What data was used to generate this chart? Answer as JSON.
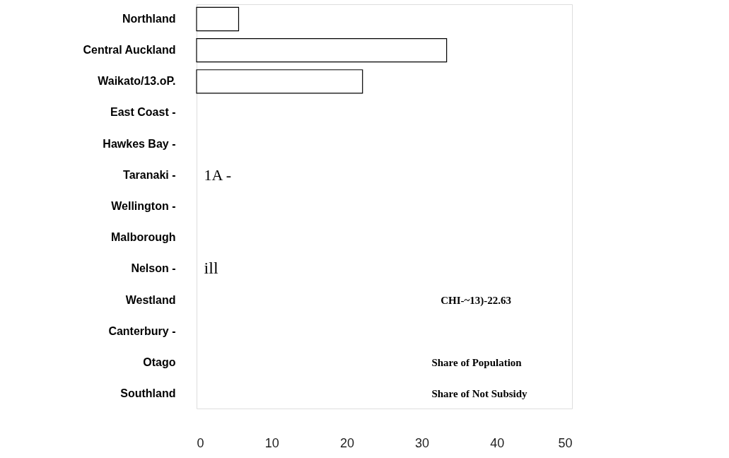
{
  "chart_data": {
    "type": "bar",
    "orientation": "horizontal",
    "categories": [
      "Northland",
      "Central Auckland",
      "Waikato/13.oP.",
      "East Coast -",
      "Hawkes Bay -",
      "Taranaki -",
      "Wellington -",
      "Malborough",
      "Nelson -",
      "Westland",
      "Canterbury -",
      "Otago",
      "Southland"
    ],
    "values": [
      5.6,
      33.3,
      22.1,
      null,
      null,
      null,
      null,
      null,
      null,
      null,
      null,
      null,
      null
    ],
    "color": "#ffffff",
    "xlim": [
      0,
      50
    ],
    "xticks": [
      0,
      10,
      20,
      30,
      40,
      50
    ],
    "grid": false,
    "annotations": [
      "1A -",
      "ill",
      "CHI-~13)-22.63",
      "Share of Population",
      "Share of Not Subsidy"
    ]
  }
}
